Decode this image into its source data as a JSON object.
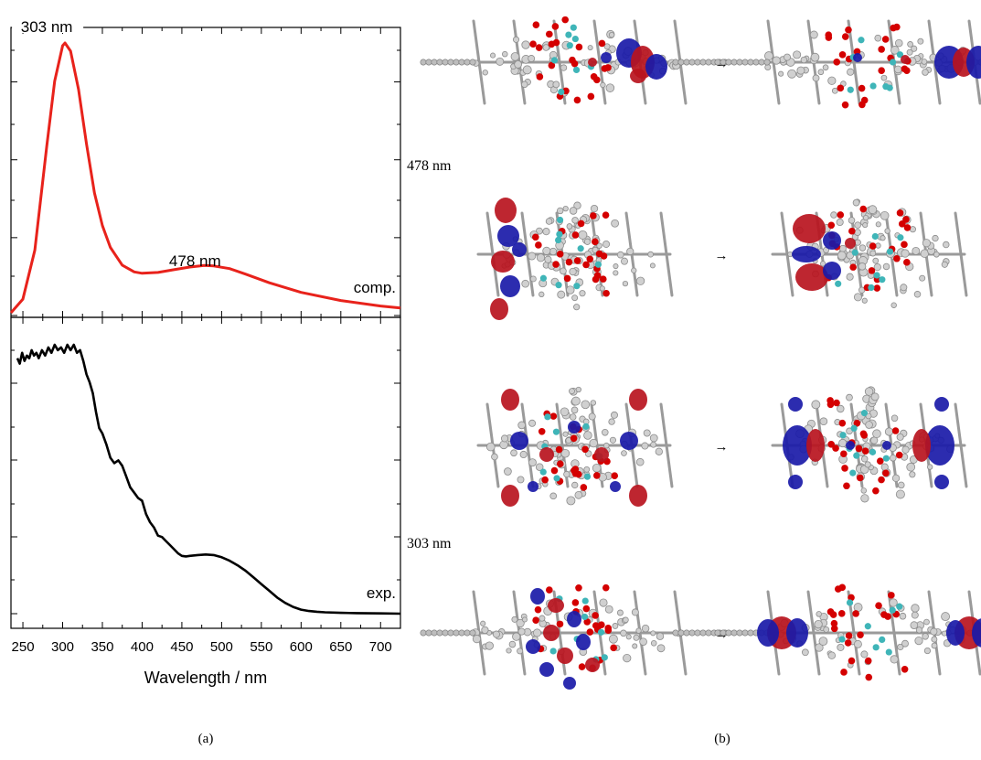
{
  "chart_data": [
    {
      "type": "line",
      "panel": "a-top",
      "xlabel": "Wavelength / nm",
      "xlim": [
        235,
        725
      ],
      "x_ticks": [
        250,
        300,
        350,
        400,
        450,
        500,
        550,
        600,
        650,
        700
      ],
      "ylim": [
        0,
        1.0
      ],
      "y_tick_labels_shown": false,
      "series": [
        {
          "name": "comp.",
          "color": "#e8221b",
          "x": [
            235,
            250,
            265,
            280,
            290,
            300,
            303,
            310,
            320,
            330,
            340,
            350,
            360,
            375,
            390,
            400,
            420,
            440,
            460,
            478,
            490,
            510,
            530,
            560,
            600,
            650,
            700,
            725
          ],
          "y": [
            0.01,
            0.06,
            0.24,
            0.62,
            0.86,
            0.99,
            1.0,
            0.97,
            0.83,
            0.63,
            0.45,
            0.33,
            0.25,
            0.185,
            0.16,
            0.155,
            0.158,
            0.168,
            0.178,
            0.184,
            0.182,
            0.172,
            0.152,
            0.12,
            0.085,
            0.055,
            0.035,
            0.028
          ]
        }
      ],
      "annotations": [
        {
          "text": "303 nm",
          "x": 303
        },
        {
          "text": "478 nm",
          "x": 478
        }
      ]
    },
    {
      "type": "line",
      "panel": "a-bottom",
      "xlabel": "Wavelength / nm",
      "xlim": [
        235,
        725
      ],
      "x_ticks": [
        250,
        300,
        350,
        400,
        450,
        500,
        550,
        600,
        650,
        700
      ],
      "ylim": [
        0,
        1.0
      ],
      "y_tick_labels_shown": false,
      "series": [
        {
          "name": "exp.",
          "color": "#000000",
          "x": [
            243,
            246,
            249,
            252,
            255,
            258,
            261,
            264,
            267,
            270,
            274,
            278,
            282,
            286,
            290,
            294,
            298,
            302,
            306,
            310,
            314,
            318,
            322,
            326,
            330,
            334,
            338,
            342,
            346,
            350,
            355,
            360,
            365,
            370,
            375,
            380,
            385,
            390,
            395,
            400,
            405,
            410,
            415,
            420,
            425,
            430,
            435,
            440,
            445,
            450,
            455,
            460,
            470,
            480,
            490,
            500,
            510,
            520,
            530,
            540,
            550,
            560,
            570,
            580,
            590,
            600,
            610,
            620,
            630,
            650,
            670,
            700,
            725
          ],
          "y": [
            0.95,
            0.93,
            0.97,
            0.94,
            0.96,
            0.95,
            0.98,
            0.96,
            0.97,
            0.95,
            0.98,
            0.96,
            0.99,
            0.97,
            1.0,
            0.98,
            0.99,
            0.97,
            1.0,
            0.98,
            1.0,
            0.97,
            0.98,
            0.94,
            0.89,
            0.86,
            0.82,
            0.75,
            0.69,
            0.67,
            0.63,
            0.58,
            0.56,
            0.57,
            0.55,
            0.51,
            0.47,
            0.45,
            0.43,
            0.42,
            0.37,
            0.34,
            0.32,
            0.29,
            0.285,
            0.27,
            0.255,
            0.24,
            0.225,
            0.215,
            0.213,
            0.215,
            0.218,
            0.22,
            0.218,
            0.21,
            0.197,
            0.18,
            0.16,
            0.135,
            0.11,
            0.085,
            0.06,
            0.04,
            0.025,
            0.015,
            0.01,
            0.007,
            0.005,
            0.003,
            0.002,
            0.001,
            0.0
          ]
        }
      ]
    }
  ],
  "panel_b": {
    "labels": {
      "upper": "478 nm",
      "lower": "303 nm"
    },
    "arrow": "→",
    "rows": 4
  },
  "captions": {
    "a": "(a)",
    "b": "(b)"
  },
  "colors": {
    "lobe_red": "#b8141e",
    "lobe_blue": "#1a1aa8",
    "atom_red": "#d40000",
    "atom_cyan": "#3fb5b8",
    "atom_gray": "#8c8c8c"
  }
}
